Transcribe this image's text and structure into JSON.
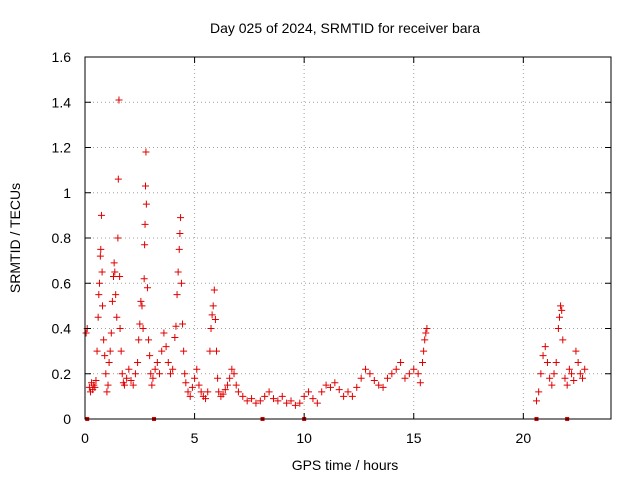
{
  "chart_data": {
    "type": "scatter",
    "title": "Day 025 of 2024, SRMTID for receiver bara",
    "xlabel": "GPS time / hours",
    "ylabel": "SRMTID / TECUs",
    "xlim": [
      0,
      24
    ],
    "ylim": [
      0,
      1.6
    ],
    "x_ticks": [
      "0",
      "5",
      "10",
      "15",
      "20"
    ],
    "y_ticks": [
      "0",
      "0.2",
      "0.4",
      "0.6",
      "0.8",
      "1",
      "1.2",
      "1.4",
      "1.6"
    ],
    "grid": true,
    "marker": "plus",
    "series": [
      {
        "name": "SRMTID",
        "color": "#e00000",
        "points": [
          [
            0.05,
            0.38
          ],
          [
            0.1,
            0.4
          ],
          [
            0.2,
            0.14
          ],
          [
            0.25,
            0.12
          ],
          [
            0.3,
            0.16
          ],
          [
            0.35,
            0.13
          ],
          [
            0.4,
            0.15
          ],
          [
            0.45,
            0.14
          ],
          [
            0.5,
            0.17
          ],
          [
            0.55,
            0.3
          ],
          [
            0.6,
            0.45
          ],
          [
            0.63,
            0.55
          ],
          [
            0.66,
            0.6
          ],
          [
            0.7,
            0.72
          ],
          [
            0.72,
            0.75
          ],
          [
            0.75,
            0.9
          ],
          [
            0.78,
            0.65
          ],
          [
            0.8,
            0.5
          ],
          [
            0.85,
            0.35
          ],
          [
            0.9,
            0.28
          ],
          [
            0.95,
            0.2
          ],
          [
            1.0,
            0.12
          ],
          [
            1.05,
            0.15
          ],
          [
            1.1,
            0.25
          ],
          [
            1.15,
            0.3
          ],
          [
            1.2,
            0.38
          ],
          [
            1.25,
            0.52
          ],
          [
            1.3,
            0.63
          ],
          [
            1.33,
            0.69
          ],
          [
            1.36,
            0.65
          ],
          [
            1.4,
            0.55
          ],
          [
            1.45,
            0.45
          ],
          [
            1.5,
            0.8
          ],
          [
            1.52,
            1.06
          ],
          [
            1.55,
            1.41
          ],
          [
            1.58,
            0.63
          ],
          [
            1.6,
            0.4
          ],
          [
            1.65,
            0.3
          ],
          [
            1.7,
            0.2
          ],
          [
            1.75,
            0.16
          ],
          [
            1.8,
            0.15
          ],
          [
            1.9,
            0.18
          ],
          [
            2.0,
            0.22
          ],
          [
            2.1,
            0.17
          ],
          [
            2.2,
            0.15
          ],
          [
            2.3,
            0.2
          ],
          [
            2.4,
            0.25
          ],
          [
            2.45,
            0.35
          ],
          [
            2.5,
            0.42
          ],
          [
            2.55,
            0.52
          ],
          [
            2.6,
            0.5
          ],
          [
            2.65,
            0.4
          ],
          [
            2.7,
            0.62
          ],
          [
            2.72,
            0.77
          ],
          [
            2.74,
            0.86
          ],
          [
            2.76,
            1.03
          ],
          [
            2.78,
            1.18
          ],
          [
            2.8,
            0.95
          ],
          [
            2.85,
            0.58
          ],
          [
            2.9,
            0.35
          ],
          [
            2.95,
            0.28
          ],
          [
            3.0,
            0.2
          ],
          [
            3.05,
            0.15
          ],
          [
            3.1,
            0.18
          ],
          [
            3.2,
            0.22
          ],
          [
            3.3,
            0.25
          ],
          [
            3.4,
            0.2
          ],
          [
            3.5,
            0.3
          ],
          [
            3.6,
            0.38
          ],
          [
            3.7,
            0.32
          ],
          [
            3.8,
            0.25
          ],
          [
            3.9,
            0.2
          ],
          [
            4.0,
            0.22
          ],
          [
            4.1,
            0.36
          ],
          [
            4.15,
            0.41
          ],
          [
            4.2,
            0.55
          ],
          [
            4.25,
            0.65
          ],
          [
            4.3,
            0.75
          ],
          [
            4.33,
            0.82
          ],
          [
            4.36,
            0.89
          ],
          [
            4.4,
            0.6
          ],
          [
            4.45,
            0.42
          ],
          [
            4.5,
            0.3
          ],
          [
            4.55,
            0.2
          ],
          [
            4.6,
            0.16
          ],
          [
            4.7,
            0.12
          ],
          [
            4.8,
            0.1
          ],
          [
            4.9,
            0.14
          ],
          [
            5.0,
            0.18
          ],
          [
            5.1,
            0.22
          ],
          [
            5.2,
            0.15
          ],
          [
            5.3,
            0.12
          ],
          [
            5.4,
            0.1
          ],
          [
            5.5,
            0.09
          ],
          [
            5.6,
            0.12
          ],
          [
            5.7,
            0.3
          ],
          [
            5.75,
            0.4
          ],
          [
            5.8,
            0.46
          ],
          [
            5.85,
            0.5
          ],
          [
            5.9,
            0.57
          ],
          [
            5.95,
            0.44
          ],
          [
            6.0,
            0.3
          ],
          [
            6.05,
            0.18
          ],
          [
            6.1,
            0.12
          ],
          [
            6.2,
            0.1
          ],
          [
            6.3,
            0.11
          ],
          [
            6.4,
            0.13
          ],
          [
            6.5,
            0.15
          ],
          [
            6.6,
            0.18
          ],
          [
            6.7,
            0.22
          ],
          [
            6.8,
            0.2
          ],
          [
            6.9,
            0.15
          ],
          [
            7.0,
            0.12
          ],
          [
            7.2,
            0.1
          ],
          [
            7.4,
            0.08
          ],
          [
            7.6,
            0.09
          ],
          [
            7.8,
            0.07
          ],
          [
            8.0,
            0.08
          ],
          [
            8.2,
            0.1
          ],
          [
            8.4,
            0.12
          ],
          [
            8.6,
            0.09
          ],
          [
            8.8,
            0.08
          ],
          [
            9.0,
            0.1
          ],
          [
            9.2,
            0.07
          ],
          [
            9.4,
            0.08
          ],
          [
            9.6,
            0.06
          ],
          [
            9.8,
            0.07
          ],
          [
            10.0,
            0.1
          ],
          [
            10.2,
            0.12
          ],
          [
            10.4,
            0.09
          ],
          [
            10.6,
            0.07
          ],
          [
            10.8,
            0.12
          ],
          [
            11.0,
            0.15
          ],
          [
            11.2,
            0.14
          ],
          [
            11.4,
            0.16
          ],
          [
            11.6,
            0.13
          ],
          [
            11.8,
            0.1
          ],
          [
            12.0,
            0.12
          ],
          [
            12.2,
            0.1
          ],
          [
            12.4,
            0.14
          ],
          [
            12.6,
            0.18
          ],
          [
            12.8,
            0.22
          ],
          [
            13.0,
            0.2
          ],
          [
            13.2,
            0.17
          ],
          [
            13.4,
            0.15
          ],
          [
            13.6,
            0.14
          ],
          [
            13.8,
            0.18
          ],
          [
            14.0,
            0.2
          ],
          [
            14.2,
            0.22
          ],
          [
            14.4,
            0.25
          ],
          [
            14.6,
            0.18
          ],
          [
            14.8,
            0.2
          ],
          [
            15.0,
            0.22
          ],
          [
            15.2,
            0.2
          ],
          [
            15.3,
            0.16
          ],
          [
            15.4,
            0.25
          ],
          [
            15.45,
            0.3
          ],
          [
            15.5,
            0.35
          ],
          [
            15.55,
            0.38
          ],
          [
            15.6,
            0.4
          ],
          [
            20.6,
            0.08
          ],
          [
            20.7,
            0.12
          ],
          [
            20.8,
            0.2
          ],
          [
            20.9,
            0.28
          ],
          [
            21.0,
            0.32
          ],
          [
            21.1,
            0.25
          ],
          [
            21.2,
            0.18
          ],
          [
            21.3,
            0.15
          ],
          [
            21.4,
            0.2
          ],
          [
            21.5,
            0.25
          ],
          [
            21.6,
            0.4
          ],
          [
            21.65,
            0.45
          ],
          [
            21.7,
            0.5
          ],
          [
            21.75,
            0.48
          ],
          [
            21.8,
            0.35
          ],
          [
            21.9,
            0.18
          ],
          [
            22.0,
            0.15
          ],
          [
            22.1,
            0.22
          ],
          [
            22.2,
            0.2
          ],
          [
            22.3,
            0.17
          ],
          [
            22.4,
            0.3
          ],
          [
            22.5,
            0.25
          ],
          [
            22.6,
            0.2
          ],
          [
            22.7,
            0.18
          ],
          [
            22.8,
            0.22
          ]
        ]
      }
    ],
    "zero_markers": [
      0.1,
      3.15,
      8.1,
      10.0,
      20.6,
      22.0
    ]
  }
}
